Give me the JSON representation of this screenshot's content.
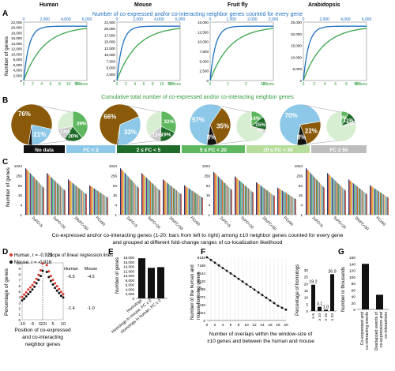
{
  "panel_letters": {
    "A": "A",
    "B": "B",
    "C": "C",
    "D": "D",
    "E": "E",
    "F": "F",
    "G": "G"
  },
  "panelA": {
    "species": [
      "Human",
      "Mouse",
      "Fruit fly",
      "Arabidopsis"
    ],
    "top_axis_title": "Number of co-expressed and/or co-interacting neighbor genes counted for every gene",
    "bottom_axis_title": "Cumulative total number of co-expressed and/or co-interacting neighbor genes",
    "ylabel": "Number of genes",
    "unit_label": "Millions",
    "plots": [
      {
        "name": "Human",
        "yticks": [
          "0",
          "2,000",
          "4,000",
          "6,000",
          "8,000",
          "10,000",
          "12,000",
          "14,000",
          "16,000",
          "18,000",
          "20,000",
          "22,000"
        ],
        "ymax": 22000,
        "top_ticks": [
          "0",
          "2,000",
          "4,000",
          "6,000"
        ],
        "bottom_ticks": [
          "0",
          "2",
          "4",
          "6",
          "8",
          "10",
          "12"
        ],
        "bottom_unit": "Millions"
      },
      {
        "name": "Mouse",
        "yticks": [
          "0",
          "2,500",
          "5,000",
          "7,500",
          "10,000",
          "12,500",
          "15,000",
          "17,500",
          "20,000",
          "22,500"
        ],
        "ymax": 22500,
        "top_ticks": [
          "0",
          "2,000",
          "4,000",
          "6,000"
        ],
        "bottom_ticks": [
          "0",
          "2",
          "4",
          "6",
          "8",
          "10",
          "12"
        ],
        "bottom_unit": "Millions"
      },
      {
        "name": "Fruit fly",
        "yticks": [
          "0",
          "2,500",
          "5,000",
          "7,500",
          "10,000",
          "12,500",
          "15,000"
        ],
        "ymax": 15000,
        "top_ticks": [
          "0",
          "1,000",
          "2,000",
          "3,000"
        ],
        "bottom_ticks": [
          "0",
          "1",
          "2",
          "3"
        ],
        "bottom_unit": "Millions"
      },
      {
        "name": "Arabidopsis",
        "yticks": [
          "0",
          "5,000",
          "10,000",
          "15,000",
          "20,000",
          "25,000"
        ],
        "ymax": 27000,
        "top_ticks": [
          "0",
          "2,000",
          "4,000",
          "6,000"
        ],
        "bottom_ticks": [
          "0",
          "2",
          "4",
          "6",
          "8",
          "10"
        ],
        "bottom_unit": "Millions"
      }
    ]
  },
  "panelB": {
    "pies": [
      {
        "big": [
          {
            "label": "76%",
            "value": 76,
            "color": "#8a5a0a"
          },
          {
            "label": "21%",
            "value": 21,
            "color": "#8ec8e8"
          },
          {
            "label": "",
            "value": 3,
            "color": "#111111"
          }
        ],
        "small": [
          {
            "label": "39%",
            "value": 39,
            "color": "#5fb85f"
          },
          {
            "label": "20%",
            "value": 20,
            "color": "#1f6b2a"
          },
          {
            "label": "13%",
            "value": 13,
            "color": "#c8c8c8"
          },
          {
            "label": "",
            "value": 28,
            "color": "#d8eed2"
          }
        ]
      },
      {
        "big": [
          {
            "label": "66%",
            "value": 66,
            "color": "#8a5a0a"
          },
          {
            "label": "33%",
            "value": 33,
            "color": "#8ec8e8"
          },
          {
            "label": "",
            "value": 1,
            "color": "#111111"
          }
        ],
        "small": [
          {
            "label": "32%",
            "value": 32,
            "color": "#5fb85f"
          },
          {
            "label": "19%",
            "value": 19,
            "color": "#1f6b2a"
          },
          {
            "label": "13%",
            "value": 13,
            "color": "#c8c8c8"
          },
          {
            "label": "",
            "value": 36,
            "color": "#d8eed2"
          }
        ]
      },
      {
        "big": [
          {
            "label": "57%",
            "value": 57,
            "color": "#8ec8e8"
          },
          {
            "label": "35%",
            "value": 35,
            "color": "#8a5a0a"
          },
          {
            "label": "8%",
            "value": 8,
            "color": "#111111"
          }
        ],
        "small": [
          {
            "label": "14%",
            "value": 14,
            "color": "#5fb85f"
          },
          {
            "label": "15%",
            "value": 15,
            "color": "#1f6b2a"
          },
          {
            "label": "4%",
            "value": 4,
            "color": "#c8c8c8"
          },
          {
            "label": "",
            "value": 67,
            "color": "#d8eed2"
          }
        ]
      },
      {
        "big": [
          {
            "label": "70%",
            "value": 70,
            "color": "#8ec8e8"
          },
          {
            "label": "22%",
            "value": 22,
            "color": "#8a5a0a"
          },
          {
            "label": "8%",
            "value": 8,
            "color": "#111111"
          }
        ],
        "small": [
          {
            "label": "8%",
            "value": 8,
            "color": "#5fb85f"
          },
          {
            "label": "11%",
            "value": 11,
            "color": "#1f6b2a"
          },
          {
            "label": "3%",
            "value": 3,
            "color": "#c8c8c8"
          },
          {
            "label": "",
            "value": 78,
            "color": "#d8eed2"
          }
        ]
      }
    ],
    "legend": [
      {
        "label": "No data",
        "bg": "#111111",
        "fg": "#ffffff"
      },
      {
        "label": "FC < 2",
        "bg": "#8ec8e8",
        "fg": "#ffffff"
      },
      {
        "label": "2 ≤ FC < 5",
        "bg": "#1f6b2a",
        "fg": "#ffffff"
      },
      {
        "label": "5 ≤ FC < 20",
        "bg": "#5fb85f",
        "fg": "#ffffff"
      },
      {
        "label": "20 ≤ FC < 50",
        "bg": "#b6dd9a",
        "fg": "#ffffff"
      },
      {
        "label": "FC ≥ 50",
        "bg": "#bdbdbd",
        "fg": "#ffffff"
      }
    ]
  },
  "panelC": {
    "ylabel": "Number of genes",
    "yticks": [
      "1",
      "4",
      "16",
      "64",
      "256",
      "1024"
    ],
    "group_labels": [
      "2≤FC<5",
      "5≤FC<20",
      "20≤FC<50",
      "FC≥50"
    ],
    "caption_line1": "Co-expressed and/or co-interacting genes (1-20: bars from left to right) among ±10 neighbor genes counted for every gene",
    "caption_line2": "and grouped at different fold-change ranges of co-localization likelihood",
    "colors": [
      "#1f3b73",
      "#c0392b",
      "#e07b39",
      "#f1c40f",
      "#7fb3d5",
      "#6c3483",
      "#27ae60",
      "#95a5a6",
      "#2e86c1",
      "#d35400",
      "#a9cce3",
      "#7d6608",
      "#148f77",
      "#e6b0aa",
      "#5d6d7e",
      "#f8c471",
      "#85929e",
      "#a3e4d7",
      "#34495e",
      "#cb4335"
    ]
  },
  "panelD": {
    "legend_human": "Human, r = -0.921",
    "legend_mouse": "Mouse, r = -0.916",
    "slope_title": "Slope of linear regression lines",
    "col_human": "Human",
    "col_mouse": "Mouse",
    "slope_h1": "-6.5",
    "slope_m1": "-4.5",
    "slope_h2": "-1.4",
    "slope_m2": "-1.0",
    "ylabel": "Percentage of genes",
    "yticks": [
      "0",
      "1",
      "2",
      "3",
      "4",
      "5",
      "6",
      "7",
      "8",
      "9",
      "10"
    ],
    "xticks": [
      "-10",
      "-5",
      "GOI",
      "5",
      "10"
    ],
    "xlabel_lines": [
      "Position of co-expressed",
      "and co-interacting",
      "neighbor genes"
    ],
    "human_points": [
      4.0,
      4.4,
      4.8,
      5.3,
      5.7,
      6.1,
      6.6,
      7.2,
      7.9,
      8.7,
      9.9,
      null,
      9.6,
      8.5,
      7.7,
      7.0,
      6.4,
      5.9,
      5.4,
      4.9,
      4.5
    ],
    "mouse_points": [
      3.4,
      3.7,
      4.1,
      4.5,
      4.9,
      5.3,
      5.8,
      6.4,
      7.0,
      7.7,
      8.6,
      null,
      8.4,
      7.5,
      6.8,
      6.2,
      5.6,
      5.1,
      4.7,
      4.2,
      3.9
    ]
  },
  "panelE": {
    "ylabel": "Number of genes",
    "yticks": [
      "0",
      "2,000",
      "4,000",
      "6,000",
      "8,000",
      "10,000",
      "12,000",
      "14,000",
      "16,000",
      "18,000"
    ],
    "ymax": 18000,
    "bars": [
      {
        "label": "Homologs",
        "value": 17600
      },
      {
        "label": "Homologs in mouse, FC ≥ 2",
        "value": 13400
      },
      {
        "label": "Homologs in human, FC ≥ 2",
        "value": 13700
      }
    ]
  },
  "panelF": {
    "ylabel_lines": [
      "Number of the human and",
      "mouse homolog genes"
    ],
    "yticks": [
      "0",
      "1024",
      "2048",
      "3072",
      "4096",
      "5120",
      "6144",
      "7168",
      "8192"
    ],
    "xticks": [
      "0",
      "2",
      "4",
      "6",
      "8",
      "10",
      "12",
      "14",
      "16",
      "18",
      "20"
    ],
    "xlabel_lines": [
      "Number of overlaps within the window-size of",
      "±10 genes and between the human and mouse"
    ],
    "line_points": [
      8192,
      7850,
      7500,
      7150,
      6800,
      6450,
      6100,
      5750,
      5400,
      5050,
      4700,
      4350,
      4000,
      3650,
      3300,
      2950,
      2600,
      2250,
      1900,
      1650,
      1400
    ],
    "bar_ylabel": "Percentage of homologs",
    "bar_yticks": [
      "0",
      "5",
      "10",
      "15",
      "20",
      "25",
      "30"
    ],
    "bar_ymax": 30,
    "bars": [
      {
        "label": "≥ 5",
        "value": 19.2,
        "value_label": "19.2"
      },
      {
        "label": "≥ 10",
        "value": 3.1,
        "value_label": "3.1"
      },
      {
        "label": "≥ 15",
        "value": 1.0,
        "value_label": "1.0"
      },
      {
        "label": "≥ 20",
        "value": 26.9,
        "value_label": "26.9"
      }
    ]
  },
  "panelG": {
    "ylabel": "Number in thousands",
    "yticks": [
      "0",
      "20",
      "40",
      "60",
      "80",
      "100",
      "120",
      "140",
      "160"
    ],
    "ymax": 160,
    "bars": [
      {
        "label": "Co-expressed and co-interacting events",
        "value": 140
      },
      {
        "label": "Overlapped events of co-expressions and co-interactions",
        "value": 45
      }
    ]
  }
}
